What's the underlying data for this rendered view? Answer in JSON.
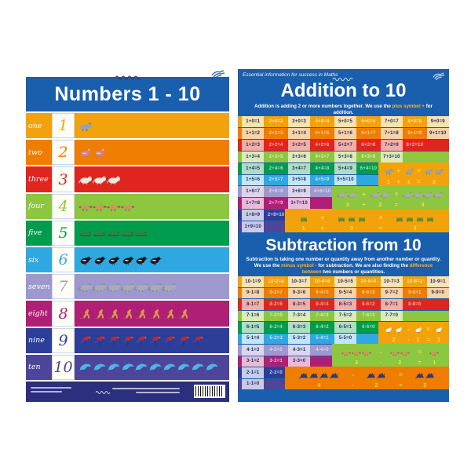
{
  "colors": {
    "poster_blue": "#1A5FAD",
    "footer_navy": "#2B2F7E",
    "highlight": "#F9B233",
    "cell_text_dark": "#1D2C5E",
    "equation_number": "#FFD94D"
  },
  "left_poster": {
    "title": "Numbers 1 - 10",
    "rows": [
      {
        "word": "one",
        "numeral": "1",
        "count": 1,
        "animal": "wombat",
        "color": "#F2A30B",
        "animal_colors": [
          "#99A2AF",
          "#6B7586"
        ]
      },
      {
        "word": "two",
        "numeral": "2",
        "count": 2,
        "animal": "galah",
        "color": "#EE7D00",
        "animal_colors": [
          "#E07A93",
          "#C6CBD4"
        ]
      },
      {
        "word": "three",
        "numeral": "3",
        "count": 3,
        "animal": "possum",
        "color": "#E0251F",
        "animal_colors": [
          "#EDEAE2",
          "#C9C2B4"
        ]
      },
      {
        "word": "four",
        "numeral": "4",
        "count": 4,
        "animal": "platypus",
        "color": "#8DC63F",
        "animal_colors": [
          "#C79A5B",
          "#8A6A3C"
        ]
      },
      {
        "word": "five",
        "numeral": "5",
        "count": 5,
        "animal": "crocodile",
        "color": "#009C4D",
        "animal_colors": [
          "#2E8540",
          "#14532B"
        ]
      },
      {
        "word": "six",
        "numeral": "6",
        "count": 6,
        "animal": "magpie",
        "color": "#2FA8E1",
        "animal_colors": [
          "#17171C",
          "#3A3A42"
        ]
      },
      {
        "word": "seven",
        "numeral": "7",
        "count": 7,
        "animal": "ringtail-possum",
        "color": "#9D99CF",
        "animal_colors": [
          "#ABABB6",
          "#83838F"
        ]
      },
      {
        "word": "eight",
        "numeral": "8",
        "count": 8,
        "animal": "kangaroo",
        "color": "#B01F76",
        "animal_colors": [
          "#D8974D",
          "#B0722F"
        ]
      },
      {
        "word": "nine",
        "numeral": "9",
        "count": 9,
        "animal": "rosella",
        "color": "#2D3E99",
        "animal_colors": [
          "#C3272D",
          "#2456A8"
        ]
      },
      {
        "word": "ten",
        "numeral": "10",
        "count": 10,
        "animal": "dolphin",
        "color": "#4D4599",
        "animal_colors": [
          "#4FB3E8",
          "#2C7CB3"
        ]
      }
    ]
  },
  "right_poster": {
    "tagline": "Essential information for success in Maths",
    "row_palettes": [
      {
        "c": "#F2A30B",
        "l": "#FBE2B4"
      },
      {
        "c": "#EE7D00",
        "l": "#F9D3A6"
      },
      {
        "c": "#E0251F",
        "l": "#F4AFA2"
      },
      {
        "c": "#8DC63F",
        "l": "#DCEBB7"
      },
      {
        "c": "#009C4D",
        "l": "#B0DCC2"
      },
      {
        "c": "#2FA8E1",
        "l": "#C2E6F6"
      },
      {
        "c": "#9D99CF",
        "l": "#DAD7EC"
      },
      {
        "c": "#B01F76",
        "l": "#EABBD7"
      },
      {
        "c": "#2D3E99",
        "l": "#C5CDEA"
      },
      {
        "c": "#4D4599",
        "l": "#CDC8E6"
      }
    ],
    "addition": {
      "title": "Addition to 10",
      "subtitle_parts": [
        {
          "text": "Addition is adding 2 or more numbers together. We use the "
        },
        {
          "text": "plus symbol +",
          "highlight": true
        },
        {
          "text": " for addition."
        }
      ],
      "rows": [
        [
          "1+0=1",
          "2+0=2",
          "3+0=3",
          "4+0=4",
          "5+0=5",
          "6+0=6",
          "7+0=7",
          "8+0=8",
          "9+0=9"
        ],
        [
          "1+1=2",
          "2+1=3",
          "3+1=4",
          "4+1=5",
          "5+1=6",
          "6+1=7",
          "7+1=8",
          "8+1=9",
          "9+1=10"
        ],
        [
          "1+2=3",
          "2+2=4",
          "3+2=5",
          "4+2=6",
          "5+2=7",
          "6+2=8",
          "7+2=9",
          "8+2=10"
        ],
        [
          "1+3=4",
          "2+3=5",
          "3+3=6",
          "4+3=7",
          "5+3=8",
          "6+3=9",
          "7+3=10"
        ],
        [
          "1+4=5",
          "2+4=6",
          "3+4=7",
          "4+4=8",
          "5+4=9",
          "6+4=10"
        ],
        [
          "1+5=6",
          "2+5=7",
          "3+5=8",
          "4+5=9",
          "5+5=10"
        ],
        [
          "1+6=7",
          "2+6=8",
          "3+6=9",
          "4+6=10"
        ],
        [
          "1+7=8",
          "2+7=9",
          "3+7=10"
        ],
        [
          "1+8=9",
          "2+8=10"
        ],
        [
          "1+9=10"
        ]
      ],
      "picture_blocks": [
        {
          "animal": "wombat",
          "animal_colors": [
            "#99A2AF",
            "#6B7586"
          ],
          "bg": "#F2A30B",
          "equation": "1 + 1 = 2",
          "row": 4,
          "col": 6,
          "cols": 3
        },
        {
          "animal": "ringtail-possum",
          "animal_colors": [
            "#ABABB6",
            "#83838F"
          ],
          "bg": "#8DC63F",
          "equation": "2 + 2 = 4",
          "row": 6,
          "col": 4,
          "cols": 5
        },
        {
          "animal": "frog",
          "animal_colors": [
            "#628F2C",
            "#3F6418"
          ],
          "bg": "#F2A30B",
          "equation": "1 + 3 = 4",
          "row": 8,
          "col": 2,
          "cols": 7
        }
      ]
    },
    "subtraction": {
      "title": "Subtraction from 10",
      "subtitle_parts": [
        {
          "text": "Subtraction is taking one number or quantity away from another number or quantity. We use the "
        },
        {
          "text": "minus symbol -",
          "highlight": true
        },
        {
          "text": " for subtraction. We are also finding the "
        },
        {
          "text": "difference between",
          "highlight": true
        },
        {
          "text": " two numbers or quantities."
        }
      ],
      "rows": [
        [
          "10-1=9",
          "10-2=8",
          "10-3=7",
          "10-4=6",
          "10-5=5",
          "10-6=4",
          "10-7=3",
          "10-8=2",
          "10-9=1"
        ],
        [
          "9-1=8",
          "9-2=7",
          "9-3=6",
          "9-4=5",
          "9-5=4",
          "9-6=3",
          "9-7=2",
          "9-8=1",
          "9-9=0"
        ],
        [
          "8-1=7",
          "8-2=6",
          "8-3=5",
          "8-4=4",
          "8-5=3",
          "8-6=2",
          "8-7=1",
          "8-8=0"
        ],
        [
          "7-1=6",
          "7-2=5",
          "7-3=4",
          "7-4=3",
          "7-5=2",
          "7-6=1",
          "7-7=0"
        ],
        [
          "6-1=5",
          "6-2=4",
          "6-3=3",
          "6-4=2",
          "6-5=1",
          "6-6=0"
        ],
        [
          "5-1=4",
          "5-2=3",
          "5-3=2",
          "5-4=1",
          "5-5=0"
        ],
        [
          "4-1=3",
          "4-2=2",
          "4-3=1",
          "4-4=0"
        ],
        [
          "3-1=2",
          "3-2=1",
          "3-3=0"
        ],
        [
          "2-1=1",
          "2-2=0"
        ],
        [
          "1-1=0"
        ]
      ],
      "picture_blocks": [
        {
          "animal": "cockatoo",
          "animal_colors": [
            "#F1F1ED",
            "#F4C63F"
          ],
          "bg": "#F2A30B",
          "equation": "2 - 1 = 1",
          "row": 4,
          "col": 6,
          "cols": 3
        },
        {
          "animal": "platypus",
          "animal_colors": [
            "#C79A5B",
            "#8A6A3C"
          ],
          "bg": "#8DC63F",
          "equation": "3 - 2 = 1",
          "row": 6,
          "col": 4,
          "cols": 5
        },
        {
          "animal": "echidna",
          "animal_colors": [
            "#2B3590",
            "#1B2260"
          ],
          "bg": "#EE7D00",
          "equation": "4 - 2 = 2",
          "row": 8,
          "col": 2,
          "cols": 7
        }
      ]
    }
  }
}
